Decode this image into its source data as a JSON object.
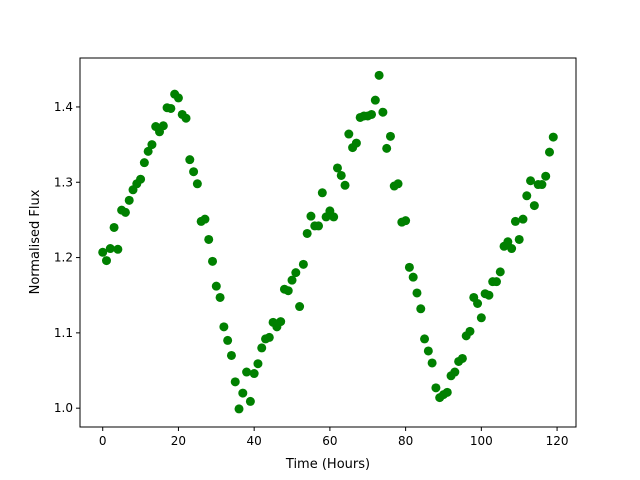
{
  "chart_data": {
    "type": "scatter",
    "title": "",
    "xlabel": "Time (Hours)",
    "ylabel": "Normalised Flux",
    "xlim": [
      -6,
      125
    ],
    "ylim": [
      0.975,
      1.465
    ],
    "xticks": [
      0,
      20,
      40,
      60,
      80,
      100,
      120
    ],
    "yticks": [
      1.0,
      1.1,
      1.2,
      1.3,
      1.4
    ],
    "xtick_labels": [
      "0",
      "20",
      "40",
      "60",
      "80",
      "100",
      "120"
    ],
    "ytick_labels": [
      "1.0",
      "1.1",
      "1.2",
      "1.3",
      "1.4"
    ],
    "grid": false,
    "marker_color": "#008000",
    "series": [
      {
        "x": [
          0,
          1,
          2,
          3,
          4,
          5,
          6,
          7,
          8,
          9,
          10,
          11,
          12,
          13,
          14,
          15,
          16,
          17,
          18,
          19,
          20,
          21,
          22,
          23,
          24,
          25,
          26,
          27,
          28,
          29,
          30,
          31,
          32,
          33,
          34,
          35,
          36,
          37,
          38,
          39,
          40,
          41,
          42,
          43,
          44,
          45,
          46,
          47,
          48,
          49,
          50,
          51,
          52,
          53,
          54,
          55,
          56,
          57,
          58,
          59,
          60,
          61,
          62,
          63,
          64,
          65,
          66,
          67,
          68,
          69,
          70,
          71,
          72,
          73,
          74,
          75,
          76,
          77,
          78,
          79,
          80,
          81,
          82,
          83,
          84,
          85,
          86,
          87,
          88,
          89,
          90,
          91,
          92,
          93,
          94,
          95,
          96,
          97,
          98,
          99,
          100,
          101,
          102,
          103,
          104,
          105,
          106,
          107,
          108,
          109,
          110,
          111,
          112,
          113,
          114,
          115,
          116,
          117,
          118,
          119
        ],
        "y": [
          1.207,
          1.196,
          1.212,
          1.24,
          1.211,
          1.263,
          1.26,
          1.276,
          1.29,
          1.298,
          1.304,
          1.326,
          1.341,
          1.35,
          1.374,
          1.367,
          1.375,
          1.399,
          1.398,
          1.417,
          1.412,
          1.39,
          1.385,
          1.33,
          1.314,
          1.298,
          1.248,
          1.251,
          1.224,
          1.195,
          1.162,
          1.147,
          1.108,
          1.09,
          1.07,
          1.035,
          0.999,
          1.02,
          1.048,
          1.009,
          1.046,
          1.059,
          1.08,
          1.092,
          1.094,
          1.114,
          1.108,
          1.115,
          1.158,
          1.156,
          1.17,
          1.18,
          1.135,
          1.191,
          1.232,
          1.255,
          1.242,
          1.242,
          1.286,
          1.254,
          1.262,
          1.254,
          1.319,
          1.309,
          1.296,
          1.364,
          1.346,
          1.352,
          1.386,
          1.388,
          1.388,
          1.39,
          1.409,
          1.442,
          1.393,
          1.345,
          1.361,
          1.295,
          1.298,
          1.247,
          1.249,
          1.187,
          1.174,
          1.153,
          1.132,
          1.092,
          1.076,
          1.06,
          1.027,
          1.014,
          1.018,
          1.021,
          1.043,
          1.048,
          1.062,
          1.066,
          1.096,
          1.102,
          1.147,
          1.139,
          1.12,
          1.152,
          1.15,
          1.168,
          1.168,
          1.181,
          1.215,
          1.221,
          1.212,
          1.248,
          1.224,
          1.251,
          1.282,
          1.302,
          1.269,
          1.297,
          1.297,
          1.308,
          1.34,
          1.36
        ]
      }
    ]
  }
}
